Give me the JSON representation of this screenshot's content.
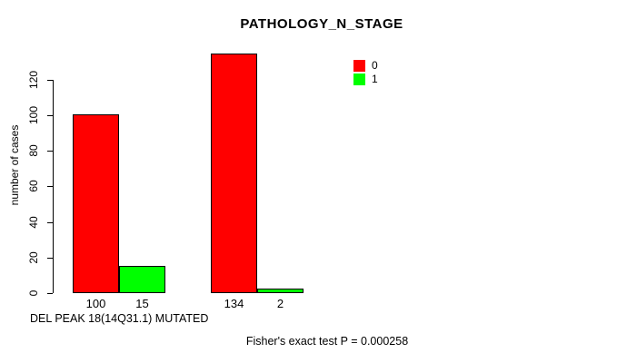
{
  "colors": {
    "background": "#ffffff",
    "axis": "#000000",
    "text": "#000000",
    "series0": "#ff0000",
    "series1": "#00ff00"
  },
  "chart_data": {
    "type": "bar",
    "title": "PATHOLOGY_N_STAGE",
    "xlabel": "DEL PEAK 18(14Q31.1) MUTATED",
    "ylabel": "number of cases",
    "ylim": [
      0,
      134
    ],
    "y_ticks": [
      0,
      20,
      40,
      60,
      80,
      100,
      120
    ],
    "grid": false,
    "legend_position": "top-right",
    "categories": [
      "",
      ""
    ],
    "series": [
      {
        "name": "0",
        "color": "#ff0000",
        "values": [
          100,
          134
        ]
      },
      {
        "name": "1",
        "color": "#00ff00",
        "values": [
          15,
          2
        ]
      }
    ],
    "bar_value_labels": [
      [
        100,
        15
      ],
      [
        134,
        2
      ]
    ],
    "annotation": "Fisher's exact test P = 0.000258"
  }
}
